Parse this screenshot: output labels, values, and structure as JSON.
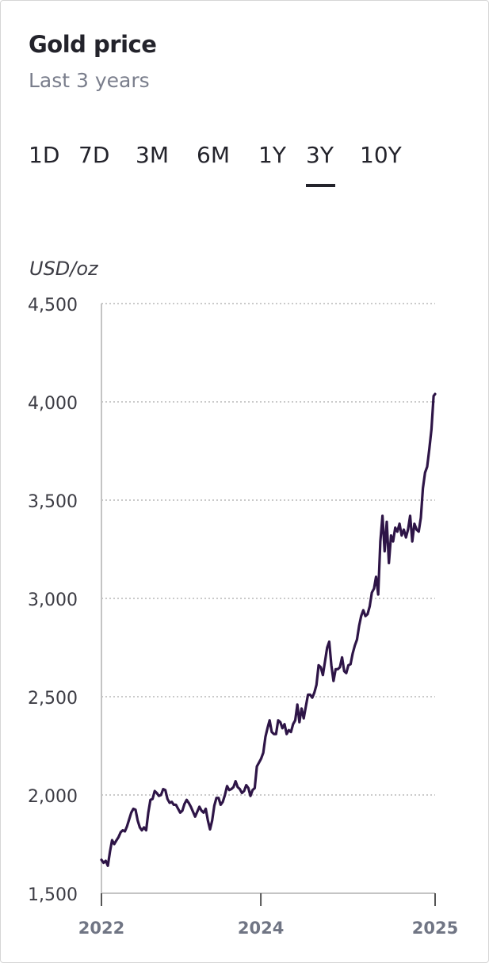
{
  "title": "Gold price",
  "subtitle": "Last 3 years",
  "tabs": [
    {
      "label": "1D",
      "active": false
    },
    {
      "label": "7D",
      "active": false
    },
    {
      "label": "3M",
      "active": false
    },
    {
      "label": "6M",
      "active": false
    },
    {
      "label": "1Y",
      "active": false
    },
    {
      "label": "3Y",
      "active": true
    },
    {
      "label": "10Y",
      "active": false
    }
  ],
  "colors": {
    "line": "#2e1547",
    "grid": "#b9b9b9",
    "axis": "#c4c4c4",
    "text": "#3c3c44",
    "tick_x": "#707584"
  },
  "chart_data": {
    "type": "line",
    "title": "",
    "ylabel": "USD/oz",
    "xlabel": "",
    "ylim": [
      1500,
      4500
    ],
    "yticks": [
      1500,
      2000,
      2500,
      3000,
      3500,
      4000,
      4500
    ],
    "ytick_labels": [
      "1,500",
      "2,000",
      "2,500",
      "3,000",
      "3,500",
      "4,000",
      "4,500"
    ],
    "xlim": [
      "2022-10-12",
      "2025-10-13"
    ],
    "xticks": [
      "2022-10-12",
      "2024-03-19",
      "2025-10-13"
    ],
    "xtick_labels": [
      "2022",
      "2024",
      "2025"
    ],
    "grid": "horizontal dotted",
    "series": [
      {
        "points": [
          [
            "2022-10-12",
            1670
          ],
          [
            "2022-10-19",
            1655
          ],
          [
            "2022-10-26",
            1665
          ],
          [
            "2022-11-02",
            1640
          ],
          [
            "2022-11-09",
            1710
          ],
          [
            "2022-11-16",
            1770
          ],
          [
            "2022-11-23",
            1750
          ],
          [
            "2022-11-30",
            1768
          ],
          [
            "2022-12-07",
            1785
          ],
          [
            "2022-12-14",
            1810
          ],
          [
            "2022-12-21",
            1820
          ],
          [
            "2022-12-28",
            1815
          ],
          [
            "2023-01-04",
            1840
          ],
          [
            "2023-01-11",
            1875
          ],
          [
            "2023-01-18",
            1910
          ],
          [
            "2023-01-25",
            1930
          ],
          [
            "2023-02-01",
            1925
          ],
          [
            "2023-02-08",
            1870
          ],
          [
            "2023-02-15",
            1835
          ],
          [
            "2023-02-22",
            1820
          ],
          [
            "2023-03-01",
            1835
          ],
          [
            "2023-03-08",
            1820
          ],
          [
            "2023-03-15",
            1910
          ],
          [
            "2023-03-22",
            1975
          ],
          [
            "2023-03-29",
            1980
          ],
          [
            "2023-04-05",
            2020
          ],
          [
            "2023-04-12",
            2010
          ],
          [
            "2023-04-19",
            1995
          ],
          [
            "2023-04-26",
            2000
          ],
          [
            "2023-05-03",
            2030
          ],
          [
            "2023-05-10",
            2025
          ],
          [
            "2023-05-17",
            1980
          ],
          [
            "2023-05-24",
            1960
          ],
          [
            "2023-05-31",
            1965
          ],
          [
            "2023-06-07",
            1950
          ],
          [
            "2023-06-14",
            1950
          ],
          [
            "2023-06-21",
            1930
          ],
          [
            "2023-06-28",
            1910
          ],
          [
            "2023-07-05",
            1920
          ],
          [
            "2023-07-12",
            1955
          ],
          [
            "2023-07-19",
            1975
          ],
          [
            "2023-07-26",
            1960
          ],
          [
            "2023-08-02",
            1940
          ],
          [
            "2023-08-09",
            1915
          ],
          [
            "2023-08-16",
            1890
          ],
          [
            "2023-08-23",
            1915
          ],
          [
            "2023-08-30",
            1940
          ],
          [
            "2023-09-06",
            1920
          ],
          [
            "2023-09-13",
            1910
          ],
          [
            "2023-09-20",
            1930
          ],
          [
            "2023-09-27",
            1870
          ],
          [
            "2023-10-04",
            1825
          ],
          [
            "2023-10-11",
            1870
          ],
          [
            "2023-10-18",
            1945
          ],
          [
            "2023-10-25",
            1985
          ],
          [
            "2023-11-01",
            1985
          ],
          [
            "2023-11-08",
            1950
          ],
          [
            "2023-11-15",
            1965
          ],
          [
            "2023-11-22",
            2000
          ],
          [
            "2023-11-29",
            2045
          ],
          [
            "2023-12-06",
            2025
          ],
          [
            "2023-12-13",
            2030
          ],
          [
            "2023-12-20",
            2040
          ],
          [
            "2023-12-27",
            2070
          ],
          [
            "2024-01-03",
            2040
          ],
          [
            "2024-01-10",
            2030
          ],
          [
            "2024-01-17",
            2010
          ],
          [
            "2024-01-24",
            2020
          ],
          [
            "2024-01-31",
            2050
          ],
          [
            "2024-02-07",
            2035
          ],
          [
            "2024-02-14",
            1995
          ],
          [
            "2024-02-21",
            2025
          ],
          [
            "2024-02-28",
            2035
          ],
          [
            "2024-03-06",
            2145
          ],
          [
            "2024-03-13",
            2165
          ],
          [
            "2024-03-20",
            2185
          ],
          [
            "2024-03-27",
            2215
          ],
          [
            "2024-04-03",
            2295
          ],
          [
            "2024-04-10",
            2340
          ],
          [
            "2024-04-17",
            2380
          ],
          [
            "2024-04-24",
            2320
          ],
          [
            "2024-05-01",
            2310
          ],
          [
            "2024-05-08",
            2310
          ],
          [
            "2024-05-15",
            2380
          ],
          [
            "2024-05-22",
            2370
          ],
          [
            "2024-05-29",
            2340
          ],
          [
            "2024-06-05",
            2360
          ],
          [
            "2024-06-12",
            2310
          ],
          [
            "2024-06-19",
            2330
          ],
          [
            "2024-06-26",
            2320
          ],
          [
            "2024-07-03",
            2360
          ],
          [
            "2024-07-10",
            2380
          ],
          [
            "2024-07-17",
            2460
          ],
          [
            "2024-07-24",
            2370
          ],
          [
            "2024-07-31",
            2440
          ],
          [
            "2024-08-07",
            2390
          ],
          [
            "2024-08-14",
            2450
          ],
          [
            "2024-08-21",
            2510
          ],
          [
            "2024-08-28",
            2510
          ],
          [
            "2024-09-04",
            2495
          ],
          [
            "2024-09-11",
            2520
          ],
          [
            "2024-09-18",
            2560
          ],
          [
            "2024-09-25",
            2660
          ],
          [
            "2024-10-02",
            2650
          ],
          [
            "2024-10-09",
            2610
          ],
          [
            "2024-10-16",
            2680
          ],
          [
            "2024-10-23",
            2750
          ],
          [
            "2024-10-30",
            2780
          ],
          [
            "2024-11-06",
            2660
          ],
          [
            "2024-11-13",
            2580
          ],
          [
            "2024-11-20",
            2640
          ],
          [
            "2024-11-27",
            2640
          ],
          [
            "2024-12-04",
            2650
          ],
          [
            "2024-12-11",
            2700
          ],
          [
            "2024-12-18",
            2630
          ],
          [
            "2024-12-25",
            2620
          ],
          [
            "2025-01-01",
            2660
          ],
          [
            "2025-01-08",
            2665
          ],
          [
            "2025-01-15",
            2720
          ],
          [
            "2025-01-22",
            2760
          ],
          [
            "2025-01-29",
            2790
          ],
          [
            "2025-02-05",
            2860
          ],
          [
            "2025-02-12",
            2910
          ],
          [
            "2025-02-19",
            2940
          ],
          [
            "2025-02-26",
            2910
          ],
          [
            "2025-03-05",
            2920
          ],
          [
            "2025-03-12",
            2960
          ],
          [
            "2025-03-19",
            3030
          ],
          [
            "2025-03-26",
            3050
          ],
          [
            "2025-04-02",
            3110
          ],
          [
            "2025-04-09",
            3020
          ],
          [
            "2025-04-16",
            3290
          ],
          [
            "2025-04-23",
            3420
          ],
          [
            "2025-04-30",
            3240
          ],
          [
            "2025-05-07",
            3390
          ],
          [
            "2025-05-14",
            3180
          ],
          [
            "2025-05-21",
            3320
          ],
          [
            "2025-05-28",
            3290
          ],
          [
            "2025-06-04",
            3360
          ],
          [
            "2025-06-11",
            3340
          ],
          [
            "2025-06-18",
            3380
          ],
          [
            "2025-06-25",
            3320
          ],
          [
            "2025-07-02",
            3350
          ],
          [
            "2025-07-09",
            3310
          ],
          [
            "2025-07-16",
            3350
          ],
          [
            "2025-07-23",
            3420
          ],
          [
            "2025-07-30",
            3290
          ],
          [
            "2025-08-06",
            3380
          ],
          [
            "2025-08-13",
            3350
          ],
          [
            "2025-08-20",
            3340
          ],
          [
            "2025-08-27",
            3410
          ],
          [
            "2025-09-03",
            3560
          ],
          [
            "2025-09-10",
            3640
          ],
          [
            "2025-09-17",
            3670
          ],
          [
            "2025-09-24",
            3760
          ],
          [
            "2025-10-01",
            3860
          ],
          [
            "2025-10-08",
            4030
          ],
          [
            "2025-10-13",
            4040
          ]
        ]
      }
    ]
  }
}
